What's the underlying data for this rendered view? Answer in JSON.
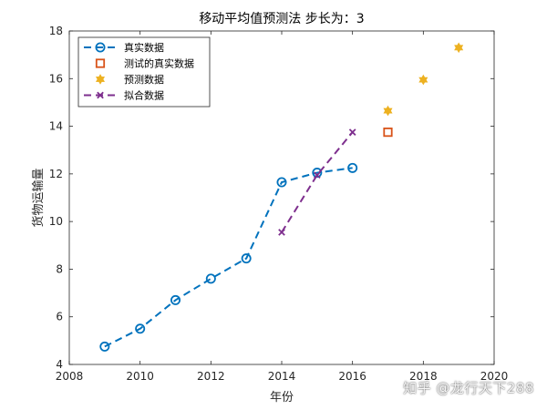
{
  "chart_data": {
    "type": "line",
    "title": "移动平均值预测法  步长为：3",
    "xlabel": "年份",
    "ylabel": "货物运输量",
    "xlim": [
      2008,
      2020
    ],
    "ylim": [
      4,
      18
    ],
    "xticks": [
      2008,
      2010,
      2012,
      2014,
      2016,
      2018,
      2020
    ],
    "yticks": [
      4,
      6,
      8,
      10,
      12,
      14,
      16,
      18
    ],
    "grid": false,
    "legend_position": "top-left",
    "series": [
      {
        "name": "真实数据",
        "style": "dashed line with circle markers",
        "color": "#0072BD",
        "x": [
          2009,
          2010,
          2011,
          2012,
          2013,
          2014,
          2015,
          2016
        ],
        "y": [
          4.75,
          5.5,
          6.7,
          7.6,
          8.45,
          11.65,
          12.05,
          12.25
        ]
      },
      {
        "name": "测试的真实数据",
        "style": "square markers",
        "color": "#D95319",
        "x": [
          2017
        ],
        "y": [
          13.75
        ]
      },
      {
        "name": "预测数据",
        "style": "hexagram markers",
        "color": "#EDB120",
        "x": [
          2017,
          2018,
          2019
        ],
        "y": [
          14.65,
          15.95,
          17.3
        ]
      },
      {
        "name": "拟合数据",
        "style": "dashed line with x markers",
        "color": "#7E2F8E",
        "x": [
          2014,
          2015,
          2016
        ],
        "y": [
          9.55,
          11.95,
          13.75
        ]
      }
    ]
  },
  "watermark": "知乎 @龙行天下288"
}
